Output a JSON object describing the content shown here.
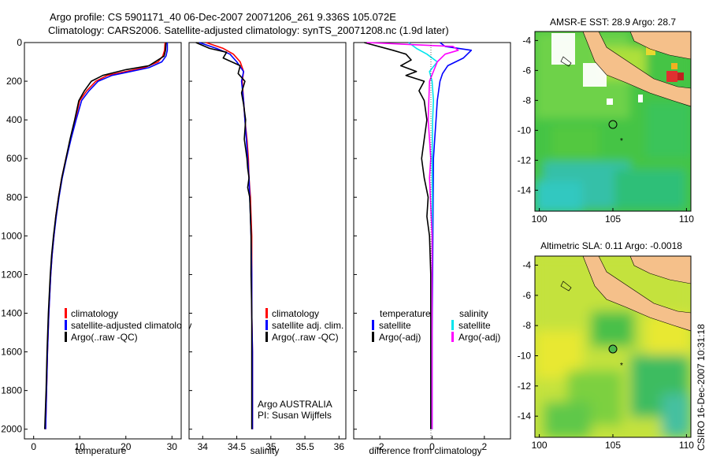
{
  "header": {
    "line1": "Argo profile: CS 5901171_40 06-Dec-2007 20071206_261 9.336S 105.072E",
    "line2": "Climatology: CARS2006. Satellite-adjusted climatology: synTS_20071208.nc (1.9d later)"
  },
  "colors": {
    "climatology": "#ff0000",
    "satellite": "#0000ff",
    "argo": "#000000",
    "satellite_salinity": "#00e5ee",
    "argo_salinity_adj": "#ff00ff",
    "land": "#f5c08a"
  },
  "chart_data": [
    {
      "type": "line",
      "xlabel": "temperature",
      "xlim": [
        -2,
        32
      ],
      "ylim": [
        2050,
        0
      ],
      "xticks": [
        "0",
        "10",
        "20",
        "30"
      ],
      "yticks": [
        "0",
        "200",
        "400",
        "600",
        "800",
        "1000",
        "1200",
        "1400",
        "1600",
        "1800",
        "2000"
      ],
      "legend": [
        "climatology",
        "satellite-adjusted climatology",
        "Argo(..raw -QC)"
      ],
      "series": [
        {
          "name": "climatology",
          "color": "#ff0000",
          "x": [
            28.5,
            28.4,
            28.0,
            27.0,
            24,
            20,
            16,
            13.5,
            11.5,
            10,
            9,
            8,
            7,
            6.1,
            5.4,
            4.8,
            4.4,
            4,
            3.7,
            3.3,
            3,
            2.8,
            2.6
          ],
          "y": [
            0,
            40,
            70,
            100,
            130,
            150,
            170,
            200,
            250,
            300,
            400,
            500,
            600,
            700,
            800,
            900,
            1000,
            1100,
            1200,
            1400,
            1600,
            1800,
            2000
          ]
        },
        {
          "name": "satellite-adjusted climatology",
          "color": "#0000ff",
          "x": [
            29.0,
            29.0,
            28.7,
            27.8,
            25,
            21,
            17,
            14,
            12,
            10.4,
            9.2,
            8.1,
            7.1,
            6.2,
            5.5,
            4.9,
            4.4,
            4,
            3.7,
            3.3,
            3,
            2.8,
            2.6
          ],
          "y": [
            0,
            40,
            70,
            100,
            130,
            150,
            170,
            200,
            250,
            300,
            400,
            500,
            600,
            700,
            800,
            900,
            1000,
            1100,
            1200,
            1400,
            1600,
            1800,
            2000
          ]
        },
        {
          "name": "Argo(..raw -QC)",
          "color": "#000000",
          "x": [
            28.7,
            28.6,
            28.3,
            25,
            20,
            15,
            12.5,
            11,
            9.8,
            8.9,
            7.9,
            7,
            6.1,
            5.4,
            4.8,
            4.3,
            3.9,
            3.6,
            3.2,
            2.9,
            2.7,
            2.4
          ],
          "y": [
            0,
            40,
            70,
            120,
            140,
            170,
            200,
            250,
            300,
            400,
            500,
            600,
            700,
            800,
            900,
            1000,
            1100,
            1200,
            1400,
            1600,
            1800,
            2000
          ]
        }
      ]
    },
    {
      "type": "line",
      "xlabel": "salinity",
      "xlim": [
        33.8,
        36.1
      ],
      "ylim": [
        2050,
        0
      ],
      "xticks": [
        "34",
        "34.5",
        "35",
        "35.5",
        "36"
      ],
      "legend": [
        "climatology",
        "satellite adj. clim.",
        "Argo(..raw -QC)"
      ],
      "annotation": [
        "Argo AUSTRALIA",
        "PI: Susan Wijffels"
      ],
      "series": [
        {
          "name": "climatology",
          "color": "#ff0000",
          "x": [
            34.05,
            34.3,
            34.45,
            34.55,
            34.6,
            34.58,
            34.6,
            34.62,
            34.65,
            34.67,
            34.68,
            34.7,
            34.71,
            34.72,
            34.72,
            34.72,
            34.73,
            34.73,
            34.73
          ],
          "y": [
            0,
            30,
            60,
            100,
            150,
            200,
            300,
            400,
            500,
            600,
            700,
            800,
            900,
            1000,
            1200,
            1400,
            1600,
            1800,
            2000
          ]
        },
        {
          "name": "satellite adj. clim.",
          "color": "#0000ff",
          "x": [
            33.95,
            34.2,
            34.4,
            34.5,
            34.6,
            34.57,
            34.6,
            34.62,
            34.64,
            34.66,
            34.68,
            34.69,
            34.7,
            34.71,
            34.72,
            34.72,
            34.73,
            34.73,
            34.73
          ],
          "y": [
            0,
            30,
            60,
            100,
            150,
            200,
            300,
            400,
            500,
            600,
            700,
            800,
            900,
            1000,
            1200,
            1400,
            1600,
            1800,
            2000
          ]
        },
        {
          "name": "Argo(..raw -QC)",
          "color": "#000000",
          "x": [
            33.9,
            34.1,
            34.35,
            34.3,
            34.55,
            34.52,
            34.62,
            34.57,
            34.6,
            34.63,
            34.61,
            34.65,
            34.66,
            34.68,
            34.66,
            34.69,
            34.7,
            34.71,
            34.71,
            34.72,
            34.72,
            34.72
          ],
          "y": [
            0,
            30,
            50,
            80,
            120,
            160,
            200,
            260,
            320,
            400,
            500,
            600,
            650,
            700,
            750,
            800,
            900,
            1000,
            1200,
            1400,
            1700,
            2000
          ]
        }
      ]
    },
    {
      "type": "line",
      "xlabel": "difference from climatology",
      "xlim": [
        -3,
        3
      ],
      "ylim": [
        2050,
        0
      ],
      "xticks": [
        "-2",
        "0",
        "2"
      ],
      "legend_left_title": "temperature",
      "legend_right_title": "salinity",
      "legend_left": [
        "satellite",
        "Argo(-adj)"
      ],
      "legend_right": [
        "satellite",
        "Argo(-adj)"
      ],
      "series": [
        {
          "name": "satellite",
          "group": "temperature",
          "color": "#0000ff",
          "x": [
            0.3,
            0.5,
            1.5,
            1.2,
            0.6,
            0.4,
            0.3,
            0.2,
            0.15,
            0.1,
            0.05,
            0.04,
            0.03,
            0.02,
            0.01,
            0.0,
            0.0
          ],
          "y": [
            0,
            20,
            40,
            80,
            120,
            160,
            200,
            300,
            400,
            500,
            600,
            800,
            1000,
            1200,
            1400,
            1700,
            2000
          ]
        },
        {
          "name": "Argo(-adj)",
          "group": "temperature",
          "color": "#000000",
          "x": [
            -2.6,
            -1.5,
            -1.0,
            -0.8,
            -1.2,
            -0.6,
            -1.0,
            -0.3,
            -0.5,
            -0.3,
            -0.2,
            -0.3,
            -0.4,
            -0.3,
            -0.15,
            -0.2,
            -0.1,
            -0.05,
            -0.05,
            -0.05
          ],
          "y": [
            0,
            40,
            60,
            90,
            120,
            150,
            170,
            200,
            250,
            300,
            400,
            500,
            600,
            700,
            800,
            900,
            1000,
            1200,
            1600,
            2000
          ]
        },
        {
          "name": "satellite",
          "group": "salinity",
          "color": "#00e5ee",
          "x": [
            -0.9,
            -0.6,
            -0.2,
            0.2,
            -0.1,
            0.0,
            0.05,
            0.02,
            0.0,
            0.01,
            0.0,
            0.0
          ],
          "y": [
            0,
            30,
            60,
            100,
            150,
            200,
            300,
            400,
            600,
            800,
            1200,
            2000
          ]
        },
        {
          "name": "Argo(-adj)",
          "group": "salinity",
          "color": "#ff00ff",
          "x": [
            -2.5,
            0.8,
            1.0,
            0.5,
            0.2,
            -0.1,
            -0.15,
            -0.1,
            -0.05,
            -0.1,
            0.0,
            0.0,
            0.0
          ],
          "y": [
            0,
            20,
            40,
            60,
            100,
            200,
            400,
            500,
            600,
            700,
            1000,
            1500,
            2000
          ]
        }
      ]
    }
  ],
  "maps": [
    {
      "title": "AMSR-E SST: 28.9 Argo: 28.7",
      "xticks": [
        "100",
        "105",
        "110"
      ],
      "yticks": [
        "-4",
        "-6",
        "-8",
        "-10",
        "-12",
        "-14"
      ]
    },
    {
      "title": "Altimetric SLA: 0.11 Argo: -0.0018",
      "xticks": [
        "100",
        "105",
        "110"
      ],
      "yticks": [
        "-4",
        "-6",
        "-8",
        "-10",
        "-12",
        "-14"
      ]
    }
  ],
  "credit": "CSIRO 16-Dec-2007 10:31:18"
}
